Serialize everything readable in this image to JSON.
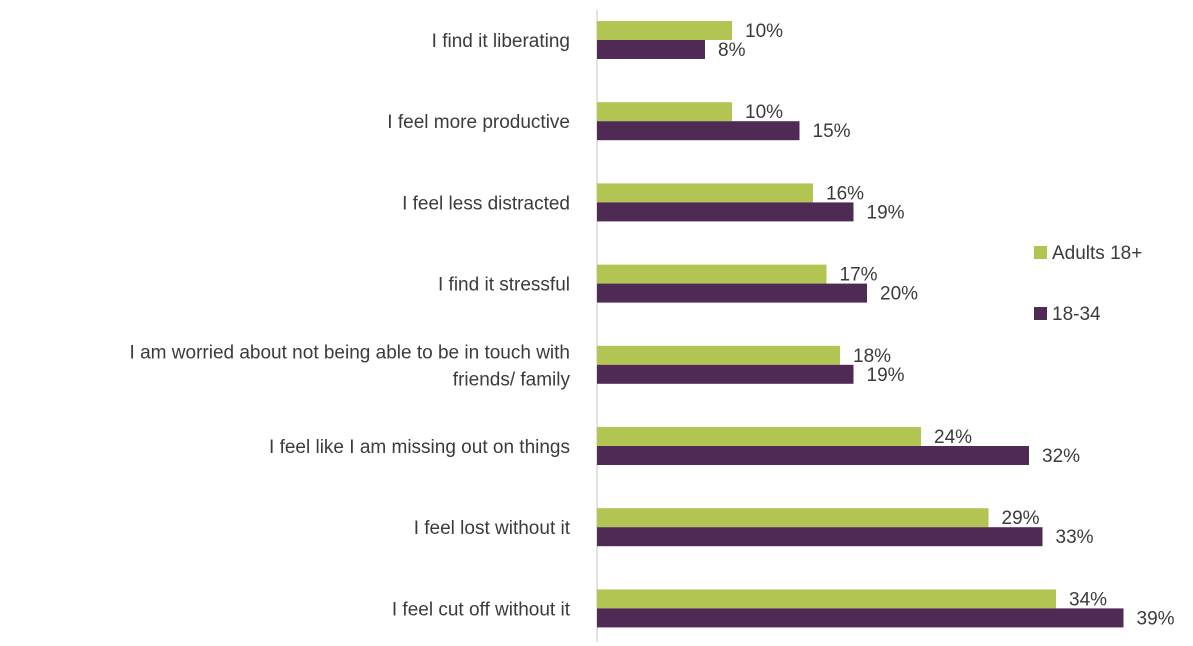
{
  "chart_data": {
    "type": "bar",
    "orientation": "horizontal",
    "title": "",
    "xlabel": "",
    "ylabel": "",
    "xlim": [
      0,
      40
    ],
    "grid": false,
    "legend_position": "right",
    "value_format": "percent",
    "categories": [
      [
        "I find it liberating"
      ],
      [
        "I feel more productive"
      ],
      [
        "I feel less distracted"
      ],
      [
        "I find it stressful"
      ],
      [
        "I am worried about not being able to be in touch with",
        "friends/ family"
      ],
      [
        "I feel like I am missing out on things"
      ],
      [
        "I feel lost without it"
      ],
      [
        "I feel cut off without it"
      ]
    ],
    "series": [
      {
        "name": "Adults 18+",
        "color": "#b2c451",
        "values": [
          10,
          10,
          16,
          17,
          18,
          24,
          29,
          34
        ]
      },
      {
        "name": "18-34",
        "color": "#4f2a55",
        "values": [
          8,
          15,
          19,
          20,
          19,
          32,
          33,
          39
        ]
      }
    ]
  }
}
